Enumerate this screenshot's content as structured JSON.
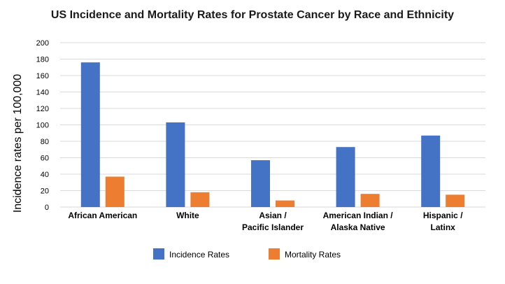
{
  "chart_data": {
    "type": "bar",
    "title": "US Incidence and Mortality Rates for Prostate Cancer by Race and Ethnicity",
    "xlabel": "",
    "ylabel": "Incidence rates per 100,000",
    "ylim": [
      0,
      200
    ],
    "yticks": [
      0,
      20,
      40,
      60,
      80,
      100,
      120,
      140,
      160,
      180,
      200
    ],
    "grid": true,
    "legend_position": "bottom",
    "categories": [
      [
        "African American"
      ],
      [
        "White"
      ],
      [
        "Asian /",
        "Pacific Islander"
      ],
      [
        "American Indian /",
        "Alaska Native"
      ],
      [
        "Hispanic /",
        "Latinx"
      ]
    ],
    "series": [
      {
        "name": "Incidence Rates",
        "color": "#4472C4",
        "values": [
          176,
          103,
          57,
          73,
          87
        ]
      },
      {
        "name": "Mortality Rates",
        "color": "#ED7D31",
        "values": [
          37,
          18,
          8,
          16,
          15
        ]
      }
    ]
  }
}
